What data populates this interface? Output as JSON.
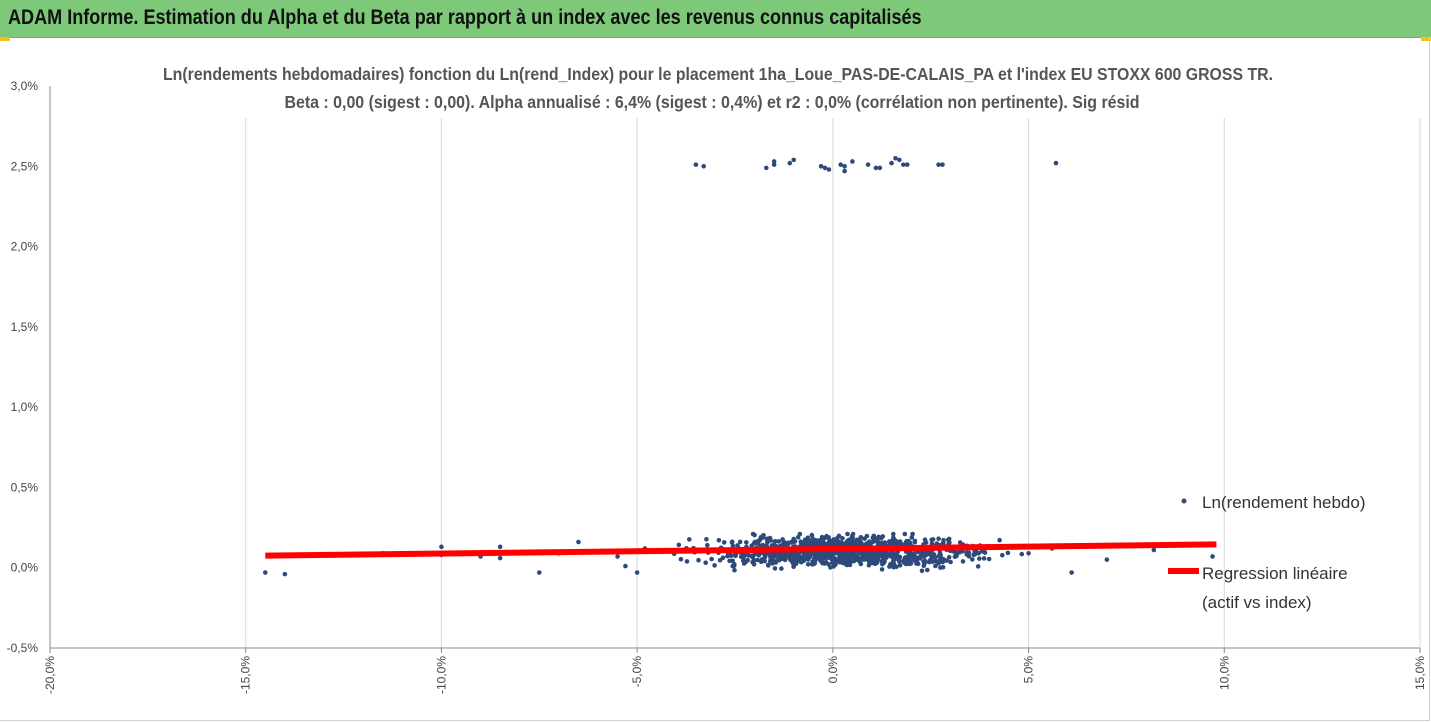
{
  "banner": {
    "title": "ADAM Informe. Estimation du Alpha et du Beta par rapport à un index avec les revenus connus capitalisés",
    "color": "#7ec87a"
  },
  "chart_data": {
    "type": "scatter",
    "title_line1": "Ln(rendements hebdomadaires) fonction du Ln(rend_Index) pour le placement 1ha_Loue_PAS-DE-CALAIS_PA et l'index EU STOXX 600 GROSS TR.",
    "title_line2": "Beta : 0,00 (sigest : 0,00). Alpha annualisé : 6,4% (sigest : 0,4%) et r2 : 0,0% (corrélation non pertinente). Sig résid",
    "xlim": [
      -20,
      15
    ],
    "ylim": [
      -0.5,
      3.0
    ],
    "x_tick_labels": [
      "-20,0%",
      "-15,0%",
      "-10,0%",
      "-5,0%",
      "0,0%",
      "5,0%",
      "10,0%",
      "15,0%"
    ],
    "y_tick_labels": [
      "-0,5%",
      "0,0%",
      "0,5%",
      "1,0%",
      "1,5%",
      "2,0%",
      "2,5%",
      "3,0%"
    ],
    "grid": "vertical",
    "legend_placement": "right",
    "series": [
      {
        "name": "Ln(rendement hebdo)",
        "color": "#2e4a7a",
        "kind": "points",
        "points": [
          [
            -3.5,
            2.51
          ],
          [
            -3.3,
            2.5
          ],
          [
            -1.7,
            2.49
          ],
          [
            -1.5,
            2.51
          ],
          [
            -1.5,
            2.53
          ],
          [
            -1.1,
            2.52
          ],
          [
            -1.0,
            2.54
          ],
          [
            -0.3,
            2.5
          ],
          [
            -0.2,
            2.49
          ],
          [
            -0.1,
            2.48
          ],
          [
            0.2,
            2.51
          ],
          [
            0.3,
            2.47
          ],
          [
            0.3,
            2.5
          ],
          [
            0.5,
            2.53
          ],
          [
            0.9,
            2.51
          ],
          [
            1.1,
            2.49
          ],
          [
            1.2,
            2.49
          ],
          [
            1.5,
            2.52
          ],
          [
            1.6,
            2.55
          ],
          [
            1.7,
            2.54
          ],
          [
            1.8,
            2.51
          ],
          [
            1.9,
            2.51
          ],
          [
            2.7,
            2.51
          ],
          [
            2.8,
            2.51
          ],
          [
            5.7,
            2.52
          ],
          [
            -14.5,
            -0.03
          ],
          [
            -14.0,
            -0.04
          ],
          [
            -11.5,
            0.09
          ],
          [
            -10.0,
            0.13
          ],
          [
            -10.0,
            0.08
          ],
          [
            -9.5,
            0.09
          ],
          [
            -9.0,
            0.07
          ],
          [
            -8.5,
            0.13
          ],
          [
            -8.5,
            0.06
          ],
          [
            -7.5,
            -0.03
          ],
          [
            -7.0,
            0.09
          ],
          [
            -6.5,
            0.16
          ],
          [
            -6.2,
            0.1
          ],
          [
            -5.5,
            0.07
          ],
          [
            -5.3,
            0.01
          ],
          [
            -5.0,
            -0.03
          ],
          [
            -4.8,
            0.12
          ],
          [
            9.7,
            0.07
          ],
          [
            8.2,
            0.11
          ],
          [
            7.0,
            0.05
          ],
          [
            6.1,
            -0.03
          ],
          [
            5.6,
            0.12
          ],
          [
            5.0,
            0.09
          ]
        ],
        "cluster": {
          "x_center": 0.3,
          "x_spread": 1.6,
          "x_min": -4.8,
          "x_max": 5.0,
          "y_center": 0.1,
          "y_spread": 0.045,
          "y_min": -0.03,
          "y_max": 0.21,
          "count": 1050
        }
      },
      {
        "name": "Regression linéaire\n(actif vs index)",
        "color": "#ff0000",
        "kind": "line",
        "x": [
          -14.5,
          9.8
        ],
        "y": [
          0.075,
          0.145
        ]
      }
    ]
  }
}
